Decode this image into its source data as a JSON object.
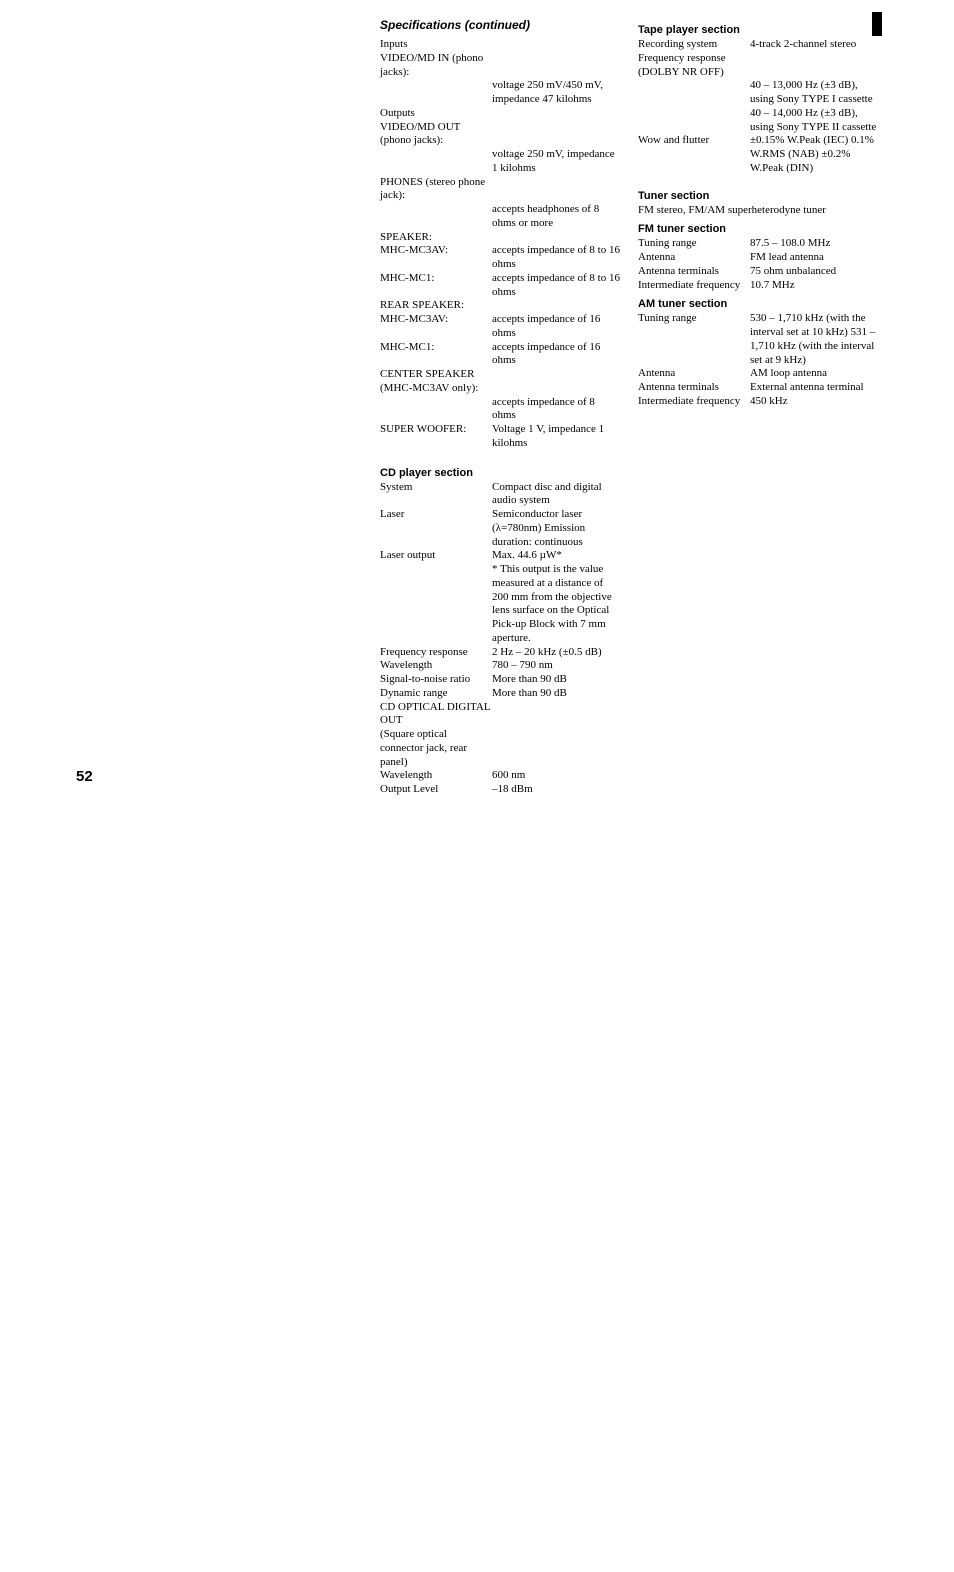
{
  "page_number": "52",
  "left_col": {
    "title": "Specifications (continued)",
    "blocks": [
      {
        "label": "Inputs",
        "value": ""
      },
      {
        "label": "VIDEO/MD IN (phono jacks):",
        "value": ""
      },
      {
        "label": "",
        "value": "voltage 250 mV/450 mV, impedance 47 kilohms"
      },
      {
        "label": "Outputs",
        "value": ""
      },
      {
        "label": "VIDEO/MD OUT (phono jacks):",
        "value": ""
      },
      {
        "label": "",
        "value": "voltage 250 mV, impedance 1 kilohms"
      },
      {
        "label": "PHONES (stereo phone jack):",
        "value": ""
      },
      {
        "label": "",
        "value": "accepts headphones of 8 ohms or more"
      },
      {
        "label": "SPEAKER:",
        "value": ""
      },
      {
        "label": "MHC-MC3AV:",
        "value": "accepts impedance of 8 to 16 ohms"
      },
      {
        "label": "MHC-MC1:",
        "value": "accepts impedance of 8 to 16 ohms"
      },
      {
        "label": "REAR SPEAKER:",
        "value": ""
      },
      {
        "label": "MHC-MC3AV:",
        "value": "accepts impedance of 16 ohms"
      },
      {
        "label": "MHC-MC1:",
        "value": "accepts impedance of 16 ohms"
      },
      {
        "label": "CENTER SPEAKER (MHC-MC3AV only):",
        "value": ""
      },
      {
        "label": "",
        "value": "accepts impedance of 8 ohms"
      },
      {
        "label": "SUPER WOOFER:",
        "value": "Voltage 1 V, impedance 1 kilohms"
      }
    ],
    "cd_title": "CD player section",
    "cd_blocks": [
      {
        "label": "System",
        "value": "Compact disc and digital audio system"
      },
      {
        "label": "Laser",
        "value": "Semiconductor laser (λ=780nm) Emission duration: continuous"
      },
      {
        "label": "Laser output",
        "value": "Max. 44.6 µW*"
      },
      {
        "label": "",
        "value": "* This output is the value measured at a distance of 200 mm from the objective lens surface on the Optical Pick-up Block with 7 mm aperture."
      },
      {
        "label": "Frequency response",
        "value": "2 Hz – 20 kHz (±0.5 dB)"
      },
      {
        "label": "Wavelength",
        "value": "780 – 790 nm"
      },
      {
        "label": "Signal-to-noise ratio",
        "value": "More than 90 dB"
      },
      {
        "label": "Dynamic range",
        "value": "More than 90 dB"
      },
      {
        "label": "CD OPTICAL DIGITAL OUT",
        "value": ""
      },
      {
        "label": "(Square optical connector jack, rear panel)",
        "value": ""
      },
      {
        "label": "Wavelength",
        "value": "600 nm"
      },
      {
        "label": "Output Level",
        "value": "–18 dBm"
      }
    ]
  },
  "right_col": {
    "tape_title": "Tape player section",
    "tape_blocks": [
      {
        "label": "Recording system",
        "value": "4-track 2-channel stereo"
      },
      {
        "label": "Frequency response (DOLBY NR OFF)",
        "value": ""
      },
      {
        "label": "",
        "value": "40 – 13,000 Hz (±3 dB), using Sony TYPE I cassette"
      },
      {
        "label": "",
        "value": "40 – 14,000 Hz (±3 dB), using Sony TYPE II cassette"
      },
      {
        "label": "Wow and flutter",
        "value": "±0.15% W.Peak (IEC) 0.1% W.RMS (NAB) ±0.2% W.Peak (DIN)"
      }
    ],
    "tuner_title": "Tuner section",
    "tuner_lead": "FM stereo, FM/AM superheterodyne tuner",
    "fm_title": "FM tuner section",
    "fm_blocks": [
      {
        "label": "Tuning range",
        "value": "87.5 – 108.0 MHz"
      },
      {
        "label": "Antenna",
        "value": "FM lead antenna"
      },
      {
        "label": "Antenna terminals",
        "value": "75 ohm unbalanced"
      },
      {
        "label": "Intermediate frequency",
        "value": "10.7 MHz"
      }
    ],
    "am_title": "AM tuner section",
    "am_blocks": [
      {
        "label": "Tuning range",
        "value": "530 – 1,710 kHz (with the interval set at 10 kHz) 531 – 1,710 kHz (with the interval set at 9 kHz)"
      },
      {
        "label": "Antenna",
        "value": "AM loop antenna"
      },
      {
        "label": "Antenna terminals",
        "value": "External antenna terminal"
      },
      {
        "label": "Intermediate frequency",
        "value": "450 kHz"
      }
    ]
  }
}
